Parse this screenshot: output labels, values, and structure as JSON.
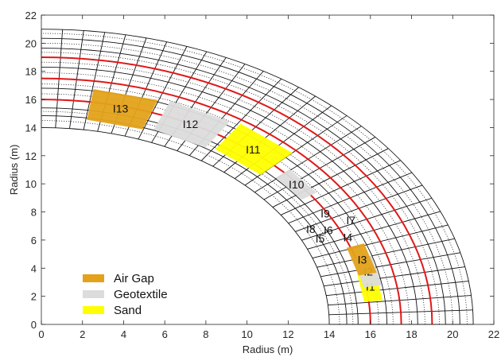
{
  "chart_data": {
    "type": "scatter",
    "title": "",
    "xlabel": "Radius (m)",
    "ylabel": "Radius (m)",
    "xlim": [
      0,
      22
    ],
    "ylim": [
      0,
      22
    ],
    "xticks": [
      "0",
      "2",
      "4",
      "6",
      "8",
      "10",
      "12",
      "14",
      "16",
      "18",
      "20",
      "22"
    ],
    "yticks": [
      "0",
      "2",
      "4",
      "6",
      "8",
      "10",
      "12",
      "14",
      "16",
      "18",
      "20",
      "22"
    ],
    "grid": false,
    "mesh": {
      "radial_lines_black": [
        14,
        14.85,
        15.4,
        16,
        16.8,
        17.5,
        18.3,
        19,
        19.65,
        20.35,
        21
      ],
      "radial_lines_dotted": [
        14.5,
        15.15,
        16.4,
        17.1,
        17.9,
        18.65,
        19.35,
        20.0,
        20.7
      ],
      "radial_lines_red": [
        16,
        17.5,
        19
      ],
      "angular_divisions": 32,
      "r_inner": 14,
      "r_outer": 21
    },
    "legend": {
      "placement": "bottom-left",
      "entries": [
        {
          "label": "Air Gap",
          "color": "#e3a21a"
        },
        {
          "label": "Geotextile",
          "color": "#dcdcdc"
        },
        {
          "label": "Sand",
          "color": "#ffff00"
        }
      ]
    },
    "zones": [
      {
        "label": "I1",
        "material": "Sand",
        "x": 16.0,
        "y": 2.7,
        "color": "#ffff00"
      },
      {
        "label": "I2",
        "material": "Geotextile",
        "x": 15.9,
        "y": 3.75,
        "color": "#dcdcdc"
      },
      {
        "label": "I3",
        "material": "Air Gap",
        "x": 15.6,
        "y": 4.6,
        "color": "#e3a21a"
      },
      {
        "label": "I4",
        "material": "Geotextile",
        "x": 14.9,
        "y": 6.2,
        "color": "#dcdcdc"
      },
      {
        "label": "I5",
        "material": "Geotextile",
        "x": 13.55,
        "y": 6.1,
        "color": "#dcdcdc"
      },
      {
        "label": "I6",
        "material": "Geotextile",
        "x": 13.95,
        "y": 6.7,
        "color": "#dcdcdc"
      },
      {
        "label": "I7",
        "material": "Geotextile",
        "x": 15.05,
        "y": 7.4,
        "color": "#dcdcdc"
      },
      {
        "label": "I8",
        "material": "Geotextile",
        "x": 13.1,
        "y": 6.8,
        "color": "#dcdcdc"
      },
      {
        "label": "I9",
        "material": "Geotextile",
        "x": 13.8,
        "y": 7.9,
        "color": "#dcdcdc"
      },
      {
        "label": "I10",
        "material": "Geotextile",
        "x": 12.4,
        "y": 9.95,
        "color": "#dcdcdc"
      },
      {
        "label": "I11",
        "material": "Sand",
        "x": 10.3,
        "y": 12.45,
        "color": "#ffff00"
      },
      {
        "label": "I12",
        "material": "Geotextile",
        "x": 7.25,
        "y": 14.25,
        "color": "#dcdcdc"
      },
      {
        "label": "I13",
        "material": "Air Gap",
        "x": 3.85,
        "y": 15.35,
        "color": "#e3a21a"
      }
    ]
  }
}
